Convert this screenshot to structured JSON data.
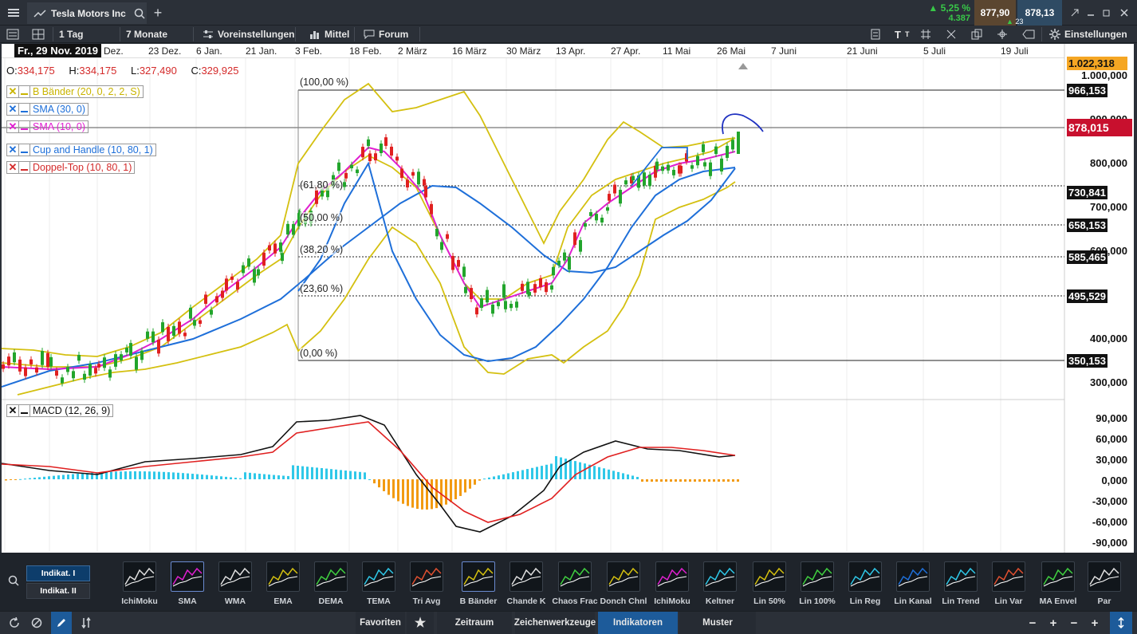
{
  "titlebar": {
    "menu_icon": "hamburger-icon",
    "tab_title": "Tesla Motors Inc",
    "add_tab": "+",
    "change_pct": "5,25 %",
    "change_abs": "4.387",
    "bid": "877,90",
    "ask": "878,13",
    "ask_size": "23"
  },
  "toolbar": {
    "interval": "1 Tag",
    "range": "7 Monate",
    "presets": "Voreinstellungen",
    "average": "Mittel",
    "forum": "Forum",
    "settings": "Einstellungen"
  },
  "datebar": {
    "current": "Fr., 29 Nov. 2019",
    "labels": [
      "Dez.",
      "23 Dez.",
      "6 Jan.",
      "21 Jan.",
      "3 Feb.",
      "18 Feb.",
      "2 März",
      "16 März",
      "30 März",
      "13 Apr.",
      "27 Apr.",
      "11 Mai",
      "26 Mai",
      "7 Juni",
      "21 Juni",
      "5 Juli",
      "19 Juli"
    ]
  },
  "ohlc": {
    "o_label": "O:",
    "o": "334,175",
    "h_label": "H:",
    "h": "334,175",
    "l_label": "L:",
    "l": "327,490",
    "c_label": "C:",
    "c": "329,925"
  },
  "legend": [
    {
      "mark": "✕",
      "text": "B Bänder (20, 0, 2, 2, S)",
      "color": "#c9b400"
    },
    {
      "mark": "✕",
      "text": "SMA (30, 0)",
      "color": "#1e6fd9"
    },
    {
      "mark": "✕",
      "text": "SMA (10, 0)",
      "color": "#e01fd0"
    },
    {
      "mark": "✕",
      "text": "Cup and Handle (10, 80, 1)",
      "color": "#1e6fd9"
    },
    {
      "mark": "✕",
      "text": "Doppel-Top (10, 80, 1)",
      "color": "#d42a2a"
    }
  ],
  "fib": [
    "(100,00 %)",
    "(61,80 %)",
    "(50,00 %)",
    "(38,20 %)",
    "(23,60 %)",
    "(0,00 %)"
  ],
  "price_axis": [
    "1.000,000",
    "900,000",
    "800,000",
    "700,000",
    "600,000",
    "400,000",
    "300,000"
  ],
  "price_tags": {
    "top": "1.022,318",
    "fib100": "966,153",
    "last": "878,015",
    "fib618": "730,841",
    "fib50": "658,153",
    "fib382": "585,465",
    "fib236": "495,529",
    "fib0": "350,153"
  },
  "macd": {
    "label": "MACD (12, 26, 9)",
    "axis": [
      "90,000",
      "60,000",
      "30,000",
      "0,000",
      "-30,000",
      "-60,000",
      "-90,000"
    ]
  },
  "indicator_tabs": [
    "Indikat. I",
    "Indikat. II"
  ],
  "indicators": [
    "IchiMoku",
    "SMA",
    "WMA",
    "EMA",
    "DEMA",
    "TEMA",
    "Tri Avg",
    "B Bänder",
    "Chande K",
    "Chaos Frac",
    "Donch Chnl",
    "IchiMoku",
    "Keltner",
    "Lin 50%",
    "Lin 100%",
    "Lin Reg",
    "Lin Kanal",
    "Lin Trend",
    "Lin Var",
    "MA Envel",
    "Par"
  ],
  "status_tabs": [
    "Favoriten",
    "Zeitraum",
    "Zeichenwerkzeuge",
    "Indikatoren",
    "Muster"
  ],
  "colors": {
    "up": "#22a52c",
    "down": "#e02020",
    "bollinger": "#d4c010",
    "sma30": "#1e6fd9",
    "sma10": "#e01fd0",
    "macd_hist_pos": "#2fc8e8",
    "macd_hist_neg": "#f29a10",
    "last_price_bg": "#c8102e"
  }
}
